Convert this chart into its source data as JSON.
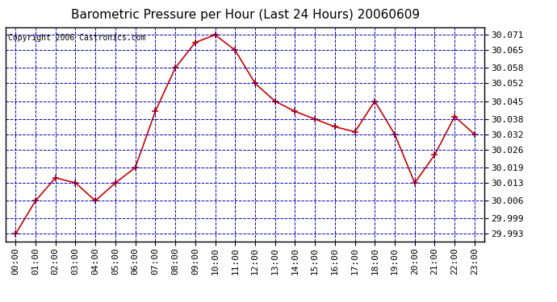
{
  "title": "Barometric Pressure per Hour (Last 24 Hours) 20060609",
  "copyright": "Copyright 2006 Castronics.com",
  "hours": [
    "00:00",
    "01:00",
    "02:00",
    "03:00",
    "04:00",
    "05:00",
    "06:00",
    "07:00",
    "08:00",
    "09:00",
    "10:00",
    "11:00",
    "12:00",
    "13:00",
    "14:00",
    "15:00",
    "16:00",
    "17:00",
    "18:00",
    "19:00",
    "20:00",
    "21:00",
    "22:00",
    "23:00"
  ],
  "values": [
    29.993,
    30.006,
    30.015,
    30.013,
    30.006,
    30.013,
    30.019,
    30.041,
    30.058,
    30.068,
    30.071,
    30.065,
    30.052,
    30.045,
    30.041,
    30.038,
    30.035,
    30.033,
    30.045,
    30.032,
    30.013,
    30.024,
    30.039,
    30.032
  ],
  "yticks": [
    29.993,
    29.999,
    30.006,
    30.013,
    30.019,
    30.026,
    30.032,
    30.038,
    30.045,
    30.052,
    30.058,
    30.065,
    30.071
  ],
  "ymin": 29.99,
  "ymax": 30.074,
  "line_color": "#cc0000",
  "marker": "+",
  "marker_color": "#cc0000",
  "background_color": "#ffffff",
  "plot_bg_color": "#ffffff",
  "grid_color": "#0000bb",
  "grid_style": "--",
  "title_fontsize": 11,
  "copyright_fontsize": 7,
  "tick_fontsize": 8,
  "border_color": "#000000"
}
